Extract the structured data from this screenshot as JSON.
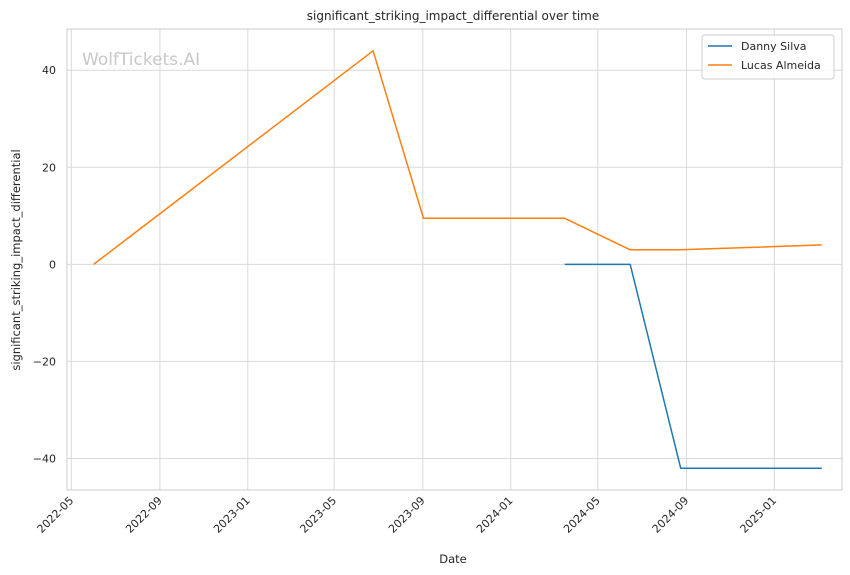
{
  "chart_data": {
    "type": "line",
    "title": "significant_striking_impact_differential over time",
    "xlabel": "Date",
    "ylabel": "significant_striking_impact_differential",
    "x_ticks": [
      "2022-05",
      "2022-09",
      "2023-01",
      "2023-05",
      "2023-09",
      "2024-01",
      "2024-05",
      "2024-09",
      "2025-01"
    ],
    "y_ticks": [
      40,
      20,
      0,
      -20,
      -40
    ],
    "y_tick_labels": [
      "40",
      "20",
      "0",
      "−20",
      "−40"
    ],
    "ylim": [
      -46.5,
      48.5
    ],
    "xlim": [
      "2022-04-25",
      "2025-04-05"
    ],
    "grid": true,
    "legend_position": "top-right",
    "watermark": "WolfTickets.AI",
    "series": [
      {
        "name": "Danny Silva",
        "color": "#1f77b4",
        "points": [
          {
            "x": "2024-03-16",
            "y": 0
          },
          {
            "x": "2024-06-15",
            "y": 0
          },
          {
            "x": "2024-08-24",
            "y": -42
          },
          {
            "x": "2025-03-08",
            "y": -42
          }
        ]
      },
      {
        "name": "Lucas Almeida",
        "color": "#ff7f0e",
        "points": [
          {
            "x": "2022-06-01",
            "y": 0
          },
          {
            "x": "2023-06-24",
            "y": 44
          },
          {
            "x": "2023-09-02",
            "y": 9.5
          },
          {
            "x": "2024-03-16",
            "y": 9.5
          },
          {
            "x": "2024-06-15",
            "y": 3
          },
          {
            "x": "2024-08-24",
            "y": 3
          },
          {
            "x": "2025-03-08",
            "y": 4
          }
        ]
      }
    ]
  }
}
